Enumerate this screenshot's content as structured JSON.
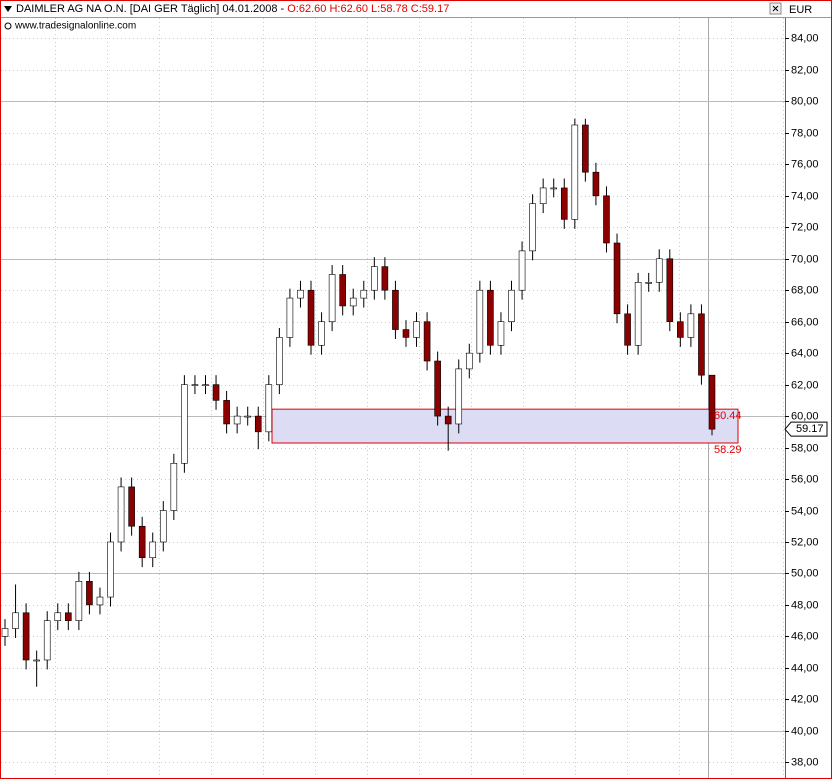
{
  "chart_data": {
    "type": "candlestick",
    "title": "DAIMLER AG NA O.N. [DAI GER  Täglich] 04.01.2008 -",
    "ohlc_label": "O:62.60 H:62.60 L:58.78 C:59.17",
    "watermark": "www.tradesignalonline.com",
    "currency": "EUR",
    "up_color": "#ffffff",
    "down_color": "#8b0000",
    "open": [
      46,
      46.5,
      47.5,
      44.5,
      44.5,
      47,
      47.5,
      47,
      49.5,
      48,
      48.5,
      52,
      55.5,
      53,
      51,
      52,
      54,
      57,
      62,
      62,
      62,
      61,
      59.5,
      60,
      60,
      59,
      62,
      65,
      67.5,
      68,
      64.5,
      66,
      69,
      67,
      67.5,
      68,
      69.5,
      68,
      65.5,
      65,
      66,
      63.5,
      60,
      59.5,
      63,
      64,
      68,
      64.5,
      66,
      68,
      70.5,
      73.5,
      74.5,
      74.5,
      72.5,
      78.5,
      75.5,
      74,
      71,
      66.5,
      64.5,
      68.5,
      68.5,
      70,
      66,
      65,
      66.5,
      62.6
    ],
    "high": [
      47.1,
      49.3,
      48.1,
      45.1,
      47.6,
      48.1,
      48.1,
      50.1,
      50.1,
      49.1,
      52.6,
      56.1,
      56.1,
      53.6,
      52.6,
      54.6,
      57.6,
      62.6,
      62.6,
      62.6,
      62.6,
      61.6,
      60.6,
      60.6,
      60.6,
      62.6,
      65.6,
      68.1,
      68.6,
      68.6,
      66.6,
      69.6,
      69.6,
      68.1,
      68.6,
      70.1,
      70.1,
      68.6,
      66.1,
      66.6,
      66.6,
      64.1,
      60.6,
      63.6,
      64.6,
      68.6,
      68.6,
      66.6,
      68.6,
      71.1,
      74.1,
      75.1,
      75.1,
      75.1,
      78.9,
      78.9,
      76.1,
      74.6,
      71.6,
      67.1,
      69.1,
      69.1,
      70.6,
      70.6,
      66.6,
      67.1,
      67.1,
      62.6
    ],
    "low": [
      45.4,
      45.9,
      43.9,
      42.8,
      43.9,
      46.4,
      46.4,
      46.4,
      47.4,
      47.4,
      47.9,
      51.4,
      52.4,
      50.4,
      50.4,
      51.4,
      53.4,
      56.4,
      61.4,
      61.4,
      60.4,
      58.9,
      58.9,
      59.4,
      57.9,
      58.4,
      61.4,
      64.4,
      66.9,
      63.9,
      63.9,
      65.4,
      66.4,
      66.4,
      66.9,
      67.4,
      67.4,
      64.9,
      64.4,
      64.4,
      62.9,
      59.4,
      57.8,
      58.9,
      62.4,
      63.4,
      63.9,
      63.9,
      65.4,
      67.4,
      69.9,
      72.9,
      73.9,
      71.9,
      71.9,
      74.9,
      73.4,
      70.4,
      65.9,
      63.9,
      63.9,
      67.9,
      67.9,
      65.4,
      64.4,
      64.4,
      62,
      58.78
    ],
    "close": [
      46.5,
      47.5,
      44.5,
      44.5,
      47,
      47.5,
      47,
      49.5,
      48,
      48.5,
      52,
      55.5,
      53,
      51,
      52,
      54,
      57,
      62,
      62,
      62,
      61,
      59.5,
      60,
      60,
      59,
      62,
      65,
      67.5,
      68,
      64.5,
      66,
      69,
      67,
      67.5,
      68,
      69.5,
      68,
      65.5,
      65,
      66,
      63.5,
      60,
      59.5,
      63,
      64,
      68,
      64.5,
      66,
      68,
      70.5,
      73.5,
      74.5,
      74.5,
      72.5,
      78.5,
      75.5,
      74,
      71,
      66.5,
      64.5,
      68.5,
      68.5,
      70,
      66,
      65,
      66.5,
      62.6,
      59.17
    ],
    "last_price": 59.17,
    "zone": {
      "upper": 60.44,
      "lower": 58.29,
      "color": "#dcdcf5"
    },
    "ylim": [
      37,
      85.3
    ],
    "yticks": [
      {
        "value": 38,
        "label": "38,00"
      },
      {
        "value": 40,
        "label": "40,00"
      },
      {
        "value": 42,
        "label": "42,00"
      },
      {
        "value": 44,
        "label": "44,00"
      },
      {
        "value": 46,
        "label": "46,00"
      },
      {
        "value": 48,
        "label": "48,00"
      },
      {
        "value": 50,
        "label": "50,00"
      },
      {
        "value": 52,
        "label": "52,00"
      },
      {
        "value": 54,
        "label": "54,00"
      },
      {
        "value": 56,
        "label": "56,00"
      },
      {
        "value": 58,
        "label": "58,00"
      },
      {
        "value": 60,
        "label": "60,00"
      },
      {
        "value": 62,
        "label": "62,00"
      },
      {
        "value": 64,
        "label": "64,00"
      },
      {
        "value": 66,
        "label": "66,00"
      },
      {
        "value": 68,
        "label": "68,00"
      },
      {
        "value": 70,
        "label": "70,00"
      },
      {
        "value": 72,
        "label": "72,00"
      },
      {
        "value": 74,
        "label": "74,00"
      },
      {
        "value": 76,
        "label": "76,00"
      },
      {
        "value": 78,
        "label": "78,00"
      },
      {
        "value": 80,
        "label": "80,00"
      },
      {
        "value": 82,
        "label": "82,00"
      },
      {
        "value": 84,
        "label": "84,00"
      }
    ],
    "grid": true
  }
}
